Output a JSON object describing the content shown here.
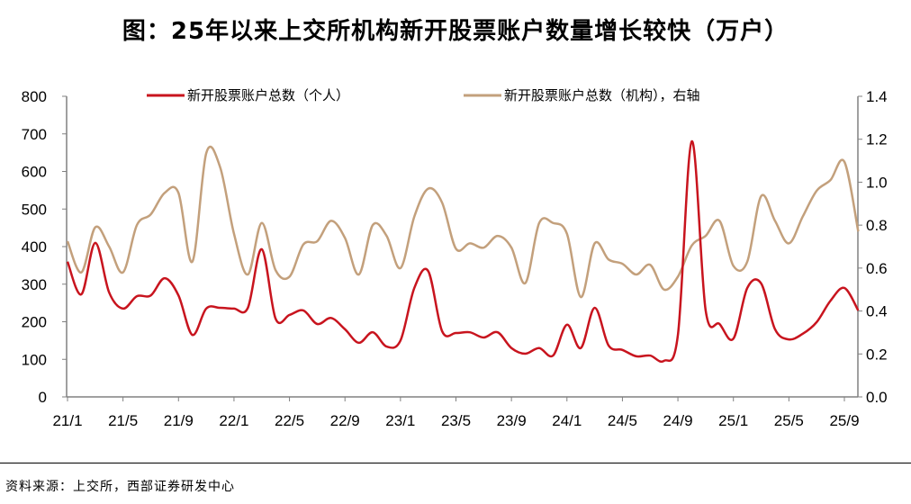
{
  "title": "图：25年以来上交所机构新开股票账户数量增长较快（万户）",
  "source": "资料来源：上交所，西部证券研发中心",
  "chart_data": {
    "type": "line",
    "title": "图：25年以来上交所机构新开股票账户数量增长较快（万户）",
    "x": [
      "21/1",
      "21/2",
      "21/3",
      "21/4",
      "21/5",
      "21/6",
      "21/7",
      "21/8",
      "21/9",
      "21/10",
      "21/11",
      "21/12",
      "22/1",
      "22/2",
      "22/3",
      "22/4",
      "22/5",
      "22/6",
      "22/7",
      "22/8",
      "22/9",
      "22/10",
      "22/11",
      "22/12",
      "23/1",
      "23/2",
      "23/3",
      "23/4",
      "23/5",
      "23/6",
      "23/7",
      "23/8",
      "23/9",
      "23/10",
      "23/11",
      "23/12",
      "24/1",
      "24/2",
      "24/3",
      "24/4",
      "24/5",
      "24/6",
      "24/7",
      "24/8",
      "24/9",
      "24/10",
      "24/11",
      "24/12",
      "25/1",
      "25/2",
      "25/3",
      "25/4",
      "25/5",
      "25/6",
      "25/7",
      "25/8",
      "25/9",
      "25/10"
    ],
    "x_tick_labels": [
      "21/1",
      "21/5",
      "21/9",
      "22/1",
      "22/5",
      "22/9",
      "23/1",
      "23/5",
      "23/9",
      "24/1",
      "24/5",
      "24/9",
      "25/1",
      "25/5",
      "25/9"
    ],
    "left_axis": {
      "ylim": [
        0,
        800
      ],
      "ticks": [
        "0",
        "100",
        "200",
        "300",
        "400",
        "500",
        "600",
        "700",
        "800"
      ]
    },
    "right_axis": {
      "ylim": [
        0,
        1.4
      ],
      "ticks": [
        "0.0",
        "0.2",
        "0.4",
        "0.6",
        "0.8",
        "1.0",
        "1.2",
        "1.4"
      ]
    },
    "grid": false,
    "legend_placement": "top",
    "series": [
      {
        "name": "新开股票账户总数（个人）",
        "axis": "left",
        "color": "#C8141E",
        "values": [
          360,
          273,
          410,
          278,
          235,
          268,
          270,
          316,
          270,
          165,
          235,
          237,
          235,
          237,
          393,
          208,
          218,
          230,
          194,
          210,
          180,
          144,
          172,
          134,
          150,
          290,
          335,
          175,
          170,
          172,
          158,
          172,
          130,
          115,
          130,
          110,
          192,
          130,
          237,
          137,
          125,
          108,
          110,
          96,
          165,
          680,
          230,
          194,
          155,
          290,
          302,
          180,
          153,
          168,
          199,
          256,
          290,
          230
        ]
      },
      {
        "name": "新开股票账户总数（机构），右轴",
        "axis": "right",
        "color": "#C3A07C",
        "values": [
          0.725,
          0.58,
          0.79,
          0.7,
          0.58,
          0.8,
          0.85,
          0.95,
          0.95,
          0.63,
          1.135,
          1.07,
          0.76,
          0.57,
          0.81,
          0.59,
          0.56,
          0.71,
          0.725,
          0.82,
          0.74,
          0.57,
          0.8,
          0.75,
          0.6,
          0.84,
          0.97,
          0.905,
          0.69,
          0.715,
          0.695,
          0.75,
          0.695,
          0.53,
          0.81,
          0.81,
          0.76,
          0.465,
          0.715,
          0.64,
          0.62,
          0.57,
          0.615,
          0.5,
          0.56,
          0.705,
          0.75,
          0.82,
          0.61,
          0.63,
          0.935,
          0.82,
          0.715,
          0.84,
          0.96,
          1.01,
          1.095,
          0.77
        ]
      }
    ]
  }
}
